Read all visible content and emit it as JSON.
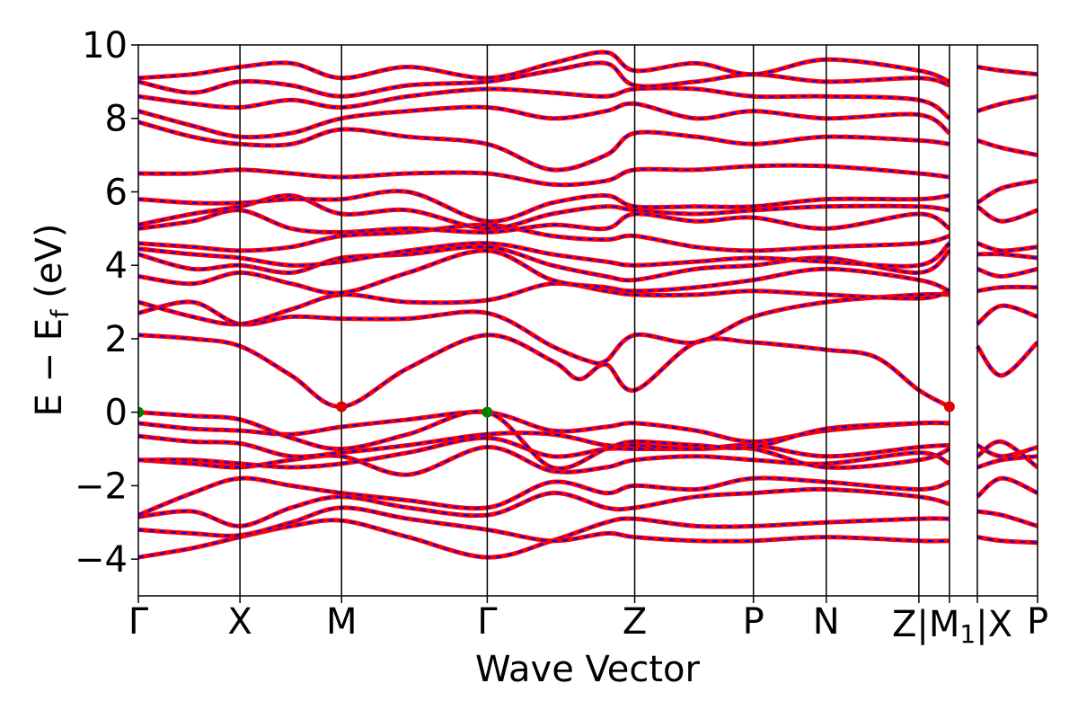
{
  "chart_data": {
    "type": "line",
    "xlabel": "Wave Vector",
    "ylabel": "E − E",
    "ylabel_sub": "f",
    "ylabel_unit": " (eV)",
    "ylim": [
      -5,
      10
    ],
    "yticks": [
      -4,
      -2,
      0,
      2,
      4,
      6,
      8,
      10
    ],
    "ytick_labels": [
      "−4",
      "−2",
      "0",
      "2",
      "4",
      "6",
      "8",
      "10"
    ],
    "xlim": [
      0,
      10.0
    ],
    "kpoints": [
      {
        "label": "Γ",
        "x": 0.0
      },
      {
        "label": "X",
        "x": 1.13
      },
      {
        "label": "M",
        "x": 2.26
      },
      {
        "label": "Γ",
        "x": 3.88
      },
      {
        "label": "Z",
        "x": 5.52
      },
      {
        "label": "P",
        "x": 6.84
      },
      {
        "label": "N",
        "x": 7.65
      },
      {
        "label": "Z",
        "x": 8.68
      },
      {
        "label": "M",
        "x": 9.02
      },
      {
        "label": "X",
        "x": 9.33
      },
      {
        "label": "P",
        "x": 10.0
      }
    ],
    "combined_label": {
      "text": "Z|M",
      "sub": "1",
      "tail": "|X"
    },
    "series": [
      {
        "color": "#ff0000",
        "style": "solid"
      },
      {
        "color": "#0000ff",
        "style": "dashed"
      }
    ],
    "markers": [
      {
        "x": 0.0,
        "y": 0.0,
        "color": "#008000",
        "kind": "VBM"
      },
      {
        "x": 3.88,
        "y": 0.0,
        "color": "#008000",
        "kind": "VBM"
      },
      {
        "x": 2.26,
        "y": 0.15,
        "color": "#e00000",
        "kind": "CBM"
      },
      {
        "x": 9.02,
        "y": 0.15,
        "color": "#e00000",
        "kind": "CBM"
      }
    ],
    "bands": [
      {
        "x": [
          0,
          0.6,
          1.13,
          1.7,
          2.26,
          3.0,
          3.88,
          4.6,
          5.2,
          5.52,
          6.2,
          6.84,
          7.65,
          8.68,
          9.02
        ],
        "y": [
          -3.95,
          -3.7,
          -3.4,
          -3.1,
          -2.95,
          -3.4,
          -3.95,
          -3.5,
          -3.0,
          -2.9,
          -3.1,
          -3.1,
          -3.0,
          -2.9,
          -2.9
        ]
      },
      {
        "x": [
          0,
          0.6,
          1.13,
          1.7,
          2.26,
          3.0,
          3.88,
          4.6,
          5.2,
          5.52,
          6.2,
          6.84,
          7.65,
          8.68,
          9.02
        ],
        "y": [
          -3.2,
          -3.3,
          -3.35,
          -3.0,
          -2.6,
          -2.9,
          -3.2,
          -3.5,
          -3.3,
          -3.4,
          -3.5,
          -3.5,
          -3.4,
          -3.5,
          -3.5
        ]
      },
      {
        "x": [
          0,
          0.6,
          1.13,
          1.7,
          2.26,
          3.0,
          3.88,
          4.6,
          5.2,
          5.52,
          6.2,
          6.84,
          7.65,
          8.68,
          9.02
        ],
        "y": [
          -2.85,
          -2.7,
          -3.1,
          -2.6,
          -2.3,
          -2.6,
          -2.8,
          -2.2,
          -2.6,
          -2.6,
          -2.3,
          -2.2,
          -2.1,
          -2.3,
          -2.5
        ]
      },
      {
        "x": [
          0,
          0.6,
          1.13,
          1.7,
          2.26,
          3.0,
          3.88,
          4.6,
          5.2,
          5.52,
          6.2,
          6.84,
          7.65,
          8.68,
          9.02
        ],
        "y": [
          -2.8,
          -2.2,
          -1.8,
          -2.0,
          -2.2,
          -2.4,
          -2.6,
          -1.9,
          -2.2,
          -2.0,
          -2.1,
          -1.8,
          -1.9,
          -2.1,
          -1.9
        ]
      },
      {
        "x": [
          0,
          0.6,
          1.13,
          1.7,
          2.26,
          3.0,
          3.88,
          4.6,
          5.2,
          5.52,
          6.2,
          6.84,
          7.65,
          8.68,
          9.02
        ],
        "y": [
          -1.3,
          -1.4,
          -1.5,
          -1.3,
          -1.2,
          -1.7,
          -0.95,
          -1.6,
          -1.5,
          -1.3,
          -1.2,
          -1.3,
          -1.4,
          -1.1,
          -1.4
        ]
      },
      {
        "x": [
          0,
          0.6,
          1.13,
          1.7,
          2.26,
          3.0,
          3.88,
          4.6,
          5.2,
          5.52,
          6.2,
          6.84,
          7.65,
          8.68,
          9.02
        ],
        "y": [
          -1.3,
          -1.3,
          -1.4,
          -1.5,
          -1.4,
          -1.1,
          -0.7,
          -1.2,
          -1.0,
          -1.0,
          -1.0,
          -1.0,
          -1.5,
          -1.3,
          -1.0
        ]
      },
      {
        "x": [
          0,
          0.6,
          1.13,
          1.7,
          2.26,
          3.0,
          3.88,
          4.6,
          5.2,
          5.52,
          6.2,
          6.84,
          7.65,
          8.68,
          9.02
        ],
        "y": [
          -0.65,
          -0.8,
          -0.85,
          -1.2,
          -1.1,
          -0.9,
          -0.6,
          -0.6,
          -0.9,
          -0.9,
          -1.0,
          -0.9,
          -1.2,
          -0.95,
          -0.9
        ]
      },
      {
        "x": [
          0,
          0.6,
          1.13,
          1.7,
          2.26,
          3.0,
          3.88,
          4.6,
          5.2,
          5.52,
          6.2,
          6.84,
          7.65,
          8.68,
          9.02
        ],
        "y": [
          -0.3,
          -0.45,
          -0.5,
          -0.6,
          -0.4,
          -0.2,
          0.0,
          -0.5,
          -0.4,
          -0.3,
          -0.5,
          -0.8,
          -0.5,
          -0.3,
          -0.3
        ]
      },
      {
        "x": [
          0,
          0.6,
          1.13,
          1.7,
          2.26,
          3.0,
          3.88,
          4.6,
          5.2,
          5.52,
          6.2,
          6.84,
          7.65,
          8.68,
          9.02
        ],
        "y": [
          0.0,
          -0.1,
          -0.2,
          -0.7,
          -1.0,
          -0.6,
          0.0,
          -1.5,
          -1.0,
          -0.8,
          -0.9,
          -0.95,
          -0.45,
          -0.3,
          -0.3
        ]
      },
      {
        "x": [
          0,
          0.6,
          1.13,
          1.7,
          2.26,
          3.0,
          3.88,
          4.6,
          4.9,
          5.2,
          5.52,
          6.2,
          6.84,
          7.65,
          8.2,
          8.68,
          9.02
        ],
        "y": [
          2.1,
          2.0,
          1.8,
          1.0,
          0.15,
          1.2,
          2.1,
          1.4,
          0.9,
          1.3,
          0.6,
          1.9,
          1.9,
          1.7,
          1.5,
          0.6,
          0.15
        ]
      },
      {
        "x": [
          0,
          0.6,
          1.13,
          1.7,
          2.26,
          3.0,
          3.88,
          4.6,
          5.0,
          5.2,
          5.52,
          6.2,
          6.84,
          7.65,
          8.68,
          9.02
        ],
        "y": [
          2.7,
          3.0,
          2.4,
          2.6,
          2.55,
          2.55,
          2.7,
          1.8,
          1.4,
          1.4,
          2.1,
          1.9,
          2.6,
          3.0,
          3.2,
          3.2
        ]
      },
      {
        "x": [
          0,
          0.6,
          1.13,
          1.7,
          2.26,
          3.0,
          3.88,
          4.6,
          5.2,
          5.52,
          6.2,
          6.84,
          7.65,
          8.68,
          9.02
        ],
        "y": [
          3.0,
          2.6,
          2.4,
          2.8,
          3.2,
          3.0,
          3.05,
          3.5,
          3.3,
          3.2,
          3.2,
          3.3,
          3.2,
          3.1,
          3.3
        ]
      },
      {
        "x": [
          0,
          0.6,
          1.13,
          1.7,
          2.26,
          3.0,
          3.88,
          4.6,
          5.2,
          5.52,
          6.2,
          6.84,
          7.65,
          8.68,
          9.02
        ],
        "y": [
          3.7,
          3.5,
          3.8,
          3.5,
          3.25,
          3.8,
          4.4,
          3.6,
          3.4,
          3.3,
          3.4,
          3.6,
          3.9,
          3.6,
          3.3
        ]
      },
      {
        "x": [
          0,
          0.6,
          1.13,
          1.7,
          2.26,
          3.0,
          3.88,
          4.6,
          5.2,
          5.52,
          6.2,
          6.84,
          7.65,
          8.68,
          9.02
        ],
        "y": [
          4.3,
          3.9,
          4.0,
          3.8,
          4.2,
          4.3,
          4.5,
          4.0,
          3.7,
          3.6,
          3.9,
          4.0,
          4.2,
          3.8,
          4.4
        ]
      },
      {
        "x": [
          0,
          0.6,
          1.13,
          1.7,
          2.26,
          3.0,
          3.88,
          4.6,
          5.2,
          5.52,
          6.2,
          6.84,
          7.65,
          8.68,
          9.02
        ],
        "y": [
          4.45,
          4.3,
          4.2,
          4.0,
          4.1,
          4.4,
          4.6,
          4.3,
          4.1,
          4.0,
          4.1,
          4.2,
          4.1,
          4.0,
          4.6
        ]
      },
      {
        "x": [
          0,
          0.6,
          1.13,
          1.7,
          2.26,
          3.0,
          3.88,
          4.6,
          5.2,
          5.52,
          6.2,
          6.84,
          7.65,
          8.68,
          9.02
        ],
        "y": [
          4.6,
          4.5,
          4.4,
          4.5,
          4.8,
          4.9,
          5.1,
          4.8,
          4.7,
          4.8,
          4.5,
          4.4,
          4.5,
          4.6,
          4.8
        ]
      },
      {
        "x": [
          0,
          0.6,
          1.13,
          1.7,
          2.26,
          3.0,
          3.88,
          4.6,
          5.2,
          5.52,
          6.2,
          6.84,
          7.65,
          8.68,
          9.02
        ],
        "y": [
          5.0,
          5.2,
          5.5,
          5.0,
          4.9,
          5.0,
          4.9,
          5.1,
          5.0,
          5.4,
          5.2,
          5.3,
          5.0,
          5.4,
          5.0
        ]
      },
      {
        "x": [
          0,
          0.6,
          1.13,
          1.7,
          2.26,
          3.0,
          3.88,
          4.6,
          5.2,
          5.52,
          6.2,
          6.84,
          7.65,
          8.68,
          9.02
        ],
        "y": [
          5.1,
          5.4,
          5.6,
          5.9,
          5.4,
          5.5,
          5.0,
          5.4,
          5.6,
          5.5,
          5.4,
          5.5,
          5.6,
          5.6,
          5.5
        ]
      },
      {
        "x": [
          0,
          0.6,
          1.13,
          1.7,
          2.26,
          3.0,
          3.88,
          4.6,
          5.2,
          5.52,
          6.2,
          6.84,
          7.65,
          8.68,
          9.02
        ],
        "y": [
          5.8,
          5.7,
          5.7,
          5.8,
          5.8,
          6.0,
          5.2,
          5.7,
          5.9,
          5.6,
          5.6,
          5.6,
          5.8,
          5.8,
          5.9
        ]
      },
      {
        "x": [
          0,
          0.6,
          1.13,
          1.7,
          2.26,
          3.0,
          3.88,
          4.6,
          5.2,
          5.52,
          6.2,
          6.84,
          7.65,
          8.68,
          9.02
        ],
        "y": [
          6.5,
          6.5,
          6.6,
          6.5,
          6.4,
          6.5,
          6.5,
          6.2,
          6.3,
          6.6,
          6.6,
          6.7,
          6.7,
          6.5,
          6.4
        ]
      },
      {
        "x": [
          0,
          0.6,
          1.13,
          1.7,
          2.26,
          3.0,
          3.88,
          4.6,
          5.2,
          5.52,
          6.2,
          6.84,
          7.65,
          8.68,
          9.02
        ],
        "y": [
          7.9,
          7.5,
          7.3,
          7.3,
          7.7,
          7.5,
          7.3,
          6.6,
          7.0,
          7.6,
          7.5,
          7.3,
          7.5,
          7.4,
          7.3
        ]
      },
      {
        "x": [
          0,
          0.6,
          1.13,
          1.7,
          2.26,
          3.0,
          3.88,
          4.6,
          5.2,
          5.52,
          6.2,
          6.84,
          7.65,
          8.68,
          9.02
        ],
        "y": [
          8.2,
          7.8,
          7.5,
          7.6,
          8.0,
          8.2,
          8.3,
          8.0,
          8.2,
          8.4,
          8.0,
          8.2,
          8.0,
          8.1,
          7.6
        ]
      },
      {
        "x": [
          0,
          0.6,
          1.13,
          1.7,
          2.26,
          3.0,
          3.88,
          4.6,
          5.2,
          5.52,
          6.2,
          6.84,
          7.65,
          8.68,
          9.02
        ],
        "y": [
          8.6,
          8.4,
          8.3,
          8.5,
          8.3,
          8.6,
          8.8,
          8.7,
          8.6,
          8.8,
          8.8,
          8.6,
          8.6,
          8.5,
          8.0
        ]
      },
      {
        "x": [
          0,
          0.6,
          1.13,
          1.7,
          2.26,
          3.0,
          3.88,
          4.6,
          5.2,
          5.52,
          6.2,
          6.84,
          7.65,
          8.68,
          9.02
        ],
        "y": [
          9.0,
          8.7,
          9.0,
          8.9,
          8.6,
          8.9,
          9.0,
          9.3,
          9.5,
          8.9,
          9.0,
          9.2,
          9.0,
          9.1,
          8.9
        ]
      },
      {
        "x": [
          0,
          0.6,
          1.13,
          1.7,
          2.26,
          3.0,
          3.88,
          4.6,
          5.2,
          5.52,
          6.2,
          6.84,
          7.65,
          8.68,
          9.02
        ],
        "y": [
          9.1,
          9.2,
          9.4,
          9.5,
          9.1,
          9.4,
          9.1,
          9.5,
          9.8,
          9.3,
          9.5,
          9.2,
          9.6,
          9.3,
          9.0
        ]
      },
      {
        "x": [
          9.33,
          9.6,
          10.0
        ],
        "y": [
          -3.4,
          -3.5,
          -3.55
        ]
      },
      {
        "x": [
          9.33,
          9.6,
          10.0
        ],
        "y": [
          -2.7,
          -2.8,
          -3.1
        ]
      },
      {
        "x": [
          9.33,
          9.6,
          10.0
        ],
        "y": [
          -1.5,
          -1.3,
          -1.2
        ]
      },
      {
        "x": [
          9.33,
          9.6,
          10.0
        ],
        "y": [
          -0.9,
          -1.2,
          -0.95
        ]
      },
      {
        "x": [
          9.33,
          9.6,
          10.0
        ],
        "y": [
          -1.2,
          -0.8,
          -1.5
        ]
      },
      {
        "x": [
          9.33,
          9.6,
          10.0
        ],
        "y": [
          -2.3,
          -1.8,
          -2.2
        ]
      },
      {
        "x": [
          9.33,
          9.6,
          10.0
        ],
        "y": [
          1.8,
          1.0,
          1.9
        ]
      },
      {
        "x": [
          9.33,
          9.6,
          10.0
        ],
        "y": [
          2.4,
          2.9,
          2.6
        ]
      },
      {
        "x": [
          9.33,
          9.6,
          10.0
        ],
        "y": [
          3.3,
          3.4,
          3.4
        ]
      },
      {
        "x": [
          9.33,
          9.6,
          10.0
        ],
        "y": [
          3.9,
          3.7,
          3.9
        ]
      },
      {
        "x": [
          9.33,
          9.6,
          10.0
        ],
        "y": [
          4.3,
          4.3,
          4.2
        ]
      },
      {
        "x": [
          9.33,
          9.6,
          10.0
        ],
        "y": [
          4.6,
          4.4,
          4.5
        ]
      },
      {
        "x": [
          9.33,
          9.6,
          10.0
        ],
        "y": [
          5.6,
          5.2,
          5.5
        ]
      },
      {
        "x": [
          9.33,
          9.6,
          10.0
        ],
        "y": [
          5.7,
          6.1,
          6.3
        ]
      },
      {
        "x": [
          9.33,
          9.6,
          10.0
        ],
        "y": [
          7.4,
          7.2,
          7.0
        ]
      },
      {
        "x": [
          9.33,
          9.6,
          10.0
        ],
        "y": [
          8.2,
          8.4,
          8.6
        ]
      },
      {
        "x": [
          9.33,
          9.6,
          10.0
        ],
        "y": [
          9.4,
          9.3,
          9.2
        ]
      }
    ]
  }
}
